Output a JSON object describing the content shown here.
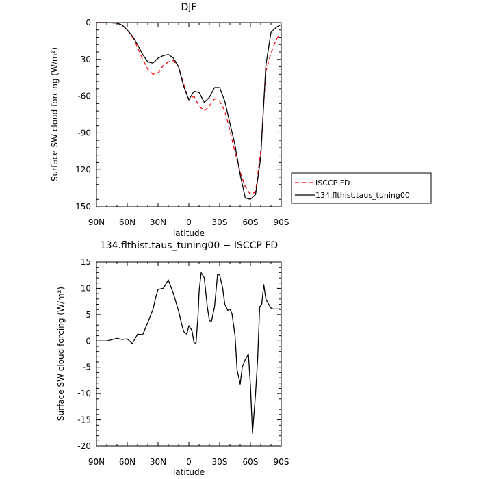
{
  "chart_data": [
    {
      "type": "line",
      "title": "DJF",
      "xlabel": "latitude",
      "ylabel": "Surface SW cloud forcing (W/m²)",
      "x_ticks": [
        "90N",
        "60N",
        "30N",
        "0",
        "30S",
        "60S",
        "90S"
      ],
      "y_ticks": [
        "0",
        "-30",
        "-60",
        "-90",
        "-120",
        "-150"
      ],
      "xlim": [
        90,
        -90
      ],
      "ylim": [
        -150,
        0
      ],
      "legend_position": "right",
      "series": [
        {
          "name": "ISCCP FD",
          "color": "#ff0000",
          "dashed": true,
          "x": [
            90,
            80,
            70,
            65,
            60,
            55,
            50,
            45,
            40,
            35,
            30,
            25,
            20,
            15,
            10,
            5,
            0,
            -5,
            -10,
            -15,
            -20,
            -25,
            -30,
            -35,
            -40,
            -45,
            -50,
            -55,
            -60,
            -65,
            -70,
            -75,
            -80,
            -85,
            -89
          ],
          "y": [
            0,
            0,
            -0.5,
            -2,
            -6,
            -12,
            -20,
            -30,
            -38,
            -42,
            -41,
            -35,
            -32,
            -31,
            -36,
            -50,
            -63,
            -60,
            -68,
            -72,
            -68,
            -62,
            -64,
            -72,
            -88,
            -106,
            -122,
            -134,
            -140,
            -138,
            -105,
            -40,
            -25,
            -14,
            -9
          ]
        },
        {
          "name": "134.flthist.taus_tuning00",
          "color": "#000000",
          "dashed": false,
          "x": [
            90,
            80,
            70,
            65,
            60,
            55,
            50,
            45,
            40,
            35,
            30,
            25,
            20,
            15,
            10,
            5,
            0,
            -5,
            -10,
            -15,
            -20,
            -25,
            -30,
            -35,
            -40,
            -45,
            -50,
            -55,
            -60,
            -65,
            -70,
            -75,
            -80,
            -85,
            -89
          ],
          "y": [
            0,
            0,
            -0.5,
            -2,
            -6,
            -11,
            -18,
            -26,
            -32,
            -33,
            -29,
            -27,
            -26,
            -29,
            -36,
            -52,
            -63,
            -56,
            -57,
            -65,
            -61,
            -53,
            -53,
            -64,
            -82,
            -100,
            -124,
            -143,
            -144,
            -140,
            -110,
            -35,
            -8,
            -4,
            -2
          ]
        }
      ]
    },
    {
      "type": "line",
      "title": "134.flthist.taus_tuning00 − ISCCP FD",
      "xlabel": "latitude",
      "ylabel": "Surface SW cloud forcing (W/m²)",
      "x_ticks": [
        "90N",
        "60N",
        "30N",
        "0",
        "30S",
        "60S",
        "90S"
      ],
      "y_ticks": [
        "15",
        "10",
        "5",
        "0",
        "-5",
        "-10",
        "-15",
        "-20"
      ],
      "xlim": [
        90,
        -90
      ],
      "ylim": [
        -20,
        15
      ],
      "series": [
        {
          "color": "#000000",
          "dashed": false,
          "x": [
            90,
            80,
            70,
            65,
            60,
            55,
            50,
            45,
            40,
            35,
            32,
            30,
            25,
            20,
            15,
            12,
            10,
            7,
            5,
            2,
            0,
            -3,
            -5,
            -7,
            -9,
            -10,
            -12,
            -15,
            -18,
            -20,
            -22,
            -25,
            -28,
            -30,
            -33,
            -35,
            -38,
            -40,
            -42,
            -45,
            -47,
            -50,
            -52,
            -55,
            -58,
            -60,
            -62,
            -65,
            -67,
            -69,
            -71,
            -73,
            -75,
            -77,
            -80,
            -82,
            -84,
            -86,
            -89
          ],
          "y": [
            0,
            0,
            0.5,
            0.3,
            0.4,
            -0.5,
            1.3,
            1.2,
            3.5,
            6,
            8.5,
            9.8,
            10,
            11.6,
            9,
            7,
            5.7,
            3.2,
            1.8,
            1.3,
            2.9,
            2,
            -0.3,
            -0.4,
            5,
            9.5,
            13,
            12,
            6.5,
            3.9,
            3.7,
            6.5,
            12.7,
            12.5,
            10,
            7,
            5.8,
            6.1,
            5.2,
            1,
            -5.5,
            -8.2,
            -5,
            -3.5,
            -2.5,
            -8.5,
            -17.5,
            -10,
            -3.5,
            6.5,
            7,
            10.7,
            8,
            7.2,
            6.3,
            6.1,
            6.1,
            6.1,
            6.1
          ]
        }
      ]
    }
  ]
}
